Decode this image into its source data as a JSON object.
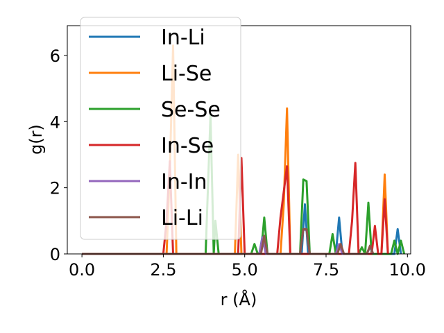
{
  "chart_data": {
    "type": "line",
    "xlabel": "r (Å)",
    "ylabel": "g(r)",
    "xlim": [
      -0.45,
      10.1
    ],
    "ylim": [
      0,
      6.9
    ],
    "xticks": [
      0.0,
      2.5,
      5.0,
      7.5,
      10.0
    ],
    "xtick_labels": [
      "0.0",
      "2.5",
      "5.0",
      "7.5",
      "10.0"
    ],
    "yticks": [
      0,
      2,
      4,
      6
    ],
    "ytick_labels": [
      "0",
      "2",
      "4",
      "6"
    ],
    "grid": false,
    "legend_position": "top-left",
    "series": [
      {
        "name": "In-Li",
        "color": "#1f77b4",
        "points": [
          [
            0,
            0
          ],
          [
            5.45,
            0
          ],
          [
            5.55,
            0.55
          ],
          [
            5.65,
            0
          ],
          [
            6.75,
            0
          ],
          [
            6.85,
            1.5
          ],
          [
            6.95,
            0
          ],
          [
            7.8,
            0
          ],
          [
            7.9,
            1.1
          ],
          [
            8.0,
            0
          ],
          [
            9.6,
            0
          ],
          [
            9.7,
            0.75
          ],
          [
            9.8,
            0
          ]
        ]
      },
      {
        "name": "Li-Se",
        "color": "#ff7f0e",
        "points": [
          [
            0,
            0
          ],
          [
            2.6,
            0
          ],
          [
            2.7,
            2.5
          ],
          [
            2.8,
            6.3
          ],
          [
            2.9,
            0
          ],
          [
            4.7,
            0
          ],
          [
            4.8,
            3.0
          ],
          [
            4.9,
            0
          ],
          [
            6.1,
            0
          ],
          [
            6.2,
            1.5
          ],
          [
            6.3,
            4.4
          ],
          [
            6.4,
            0
          ],
          [
            9.2,
            0
          ],
          [
            9.3,
            2.4
          ],
          [
            9.4,
            0
          ]
        ]
      },
      {
        "name": "Se-Se",
        "color": "#2ca02c",
        "points": [
          [
            0,
            0
          ],
          [
            3.8,
            0
          ],
          [
            3.95,
            4.2
          ],
          [
            4.05,
            0
          ],
          [
            4.1,
            1.0
          ],
          [
            4.2,
            0
          ],
          [
            5.2,
            0
          ],
          [
            5.3,
            0.3
          ],
          [
            5.4,
            0
          ],
          [
            5.5,
            0
          ],
          [
            5.6,
            1.1
          ],
          [
            5.7,
            0
          ],
          [
            6.7,
            0
          ],
          [
            6.8,
            2.25
          ],
          [
            6.9,
            2.2
          ],
          [
            7.0,
            0
          ],
          [
            7.6,
            0
          ],
          [
            7.7,
            0.6
          ],
          [
            7.8,
            0
          ],
          [
            8.5,
            0
          ],
          [
            8.6,
            0.2
          ],
          [
            8.7,
            0
          ],
          [
            8.8,
            1.55
          ],
          [
            8.9,
            0
          ],
          [
            9.5,
            0
          ],
          [
            9.6,
            0.4
          ],
          [
            9.7,
            0
          ],
          [
            9.8,
            0.4
          ],
          [
            9.9,
            0
          ]
        ]
      },
      {
        "name": "In-Se",
        "color": "#d62728",
        "points": [
          [
            0,
            0
          ],
          [
            2.5,
            0
          ],
          [
            2.6,
            1.0
          ],
          [
            2.7,
            2.8
          ],
          [
            2.8,
            0
          ],
          [
            4.8,
            0
          ],
          [
            4.9,
            2.9
          ],
          [
            5.0,
            0
          ],
          [
            6.0,
            0
          ],
          [
            6.1,
            1.1
          ],
          [
            6.3,
            2.65
          ],
          [
            6.4,
            0
          ],
          [
            8.2,
            0
          ],
          [
            8.3,
            1.0
          ],
          [
            8.4,
            2.75
          ],
          [
            8.5,
            0
          ],
          [
            8.9,
            0
          ],
          [
            9.0,
            0.85
          ],
          [
            9.1,
            0
          ],
          [
            9.2,
            0
          ],
          [
            9.3,
            1.65
          ],
          [
            9.4,
            0
          ]
        ]
      },
      {
        "name": "In-In",
        "color": "#9467bd",
        "points": [
          [
            0,
            0
          ],
          [
            5.45,
            0
          ],
          [
            5.55,
            0.5
          ],
          [
            5.65,
            0
          ],
          [
            6.7,
            0
          ],
          [
            6.8,
            0.75
          ],
          [
            6.9,
            0.7
          ],
          [
            7.0,
            0
          ],
          [
            7.8,
            0
          ],
          [
            7.9,
            0.3
          ],
          [
            8.0,
            0
          ],
          [
            8.75,
            0
          ],
          [
            8.85,
            0.2
          ],
          [
            8.95,
            0
          ]
        ]
      },
      {
        "name": "Li-Li",
        "color": "#8c564b",
        "points": [
          [
            0,
            0
          ],
          [
            5.5,
            0
          ],
          [
            5.6,
            0.55
          ],
          [
            5.7,
            0
          ],
          [
            6.7,
            0
          ],
          [
            6.8,
            0.75
          ],
          [
            6.9,
            0.75
          ],
          [
            7.0,
            0
          ],
          [
            7.85,
            0
          ],
          [
            7.95,
            0.3
          ],
          [
            8.05,
            0
          ],
          [
            8.75,
            0
          ],
          [
            8.85,
            0.25
          ],
          [
            8.95,
            0
          ]
        ]
      }
    ]
  }
}
